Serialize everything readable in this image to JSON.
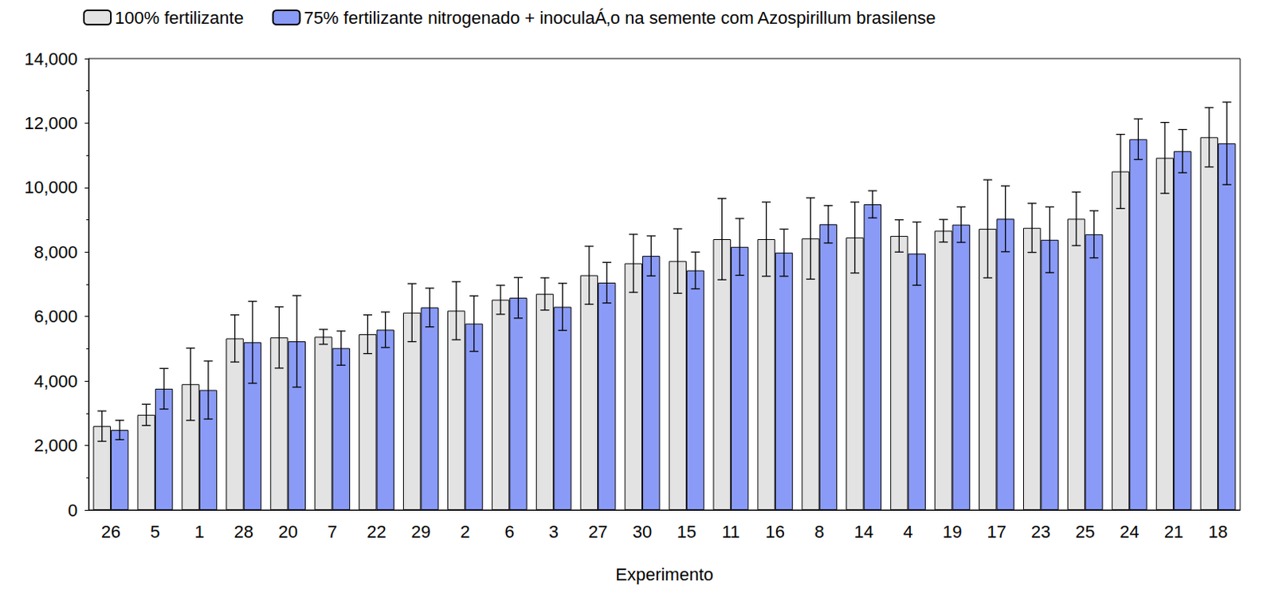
{
  "chart_data": {
    "type": "bar",
    "x_label": "Experimento",
    "categories": [
      "26",
      "5",
      "1",
      "28",
      "20",
      "7",
      "22",
      "29",
      "2",
      "6",
      "3",
      "27",
      "30",
      "15",
      "11",
      "16",
      "8",
      "14",
      "4",
      "19",
      "17",
      "23",
      "25",
      "24",
      "21",
      "18"
    ],
    "series": [
      {
        "name": "100% fertilizante",
        "color": "#e3e3e3",
        "values": [
          2600,
          2950,
          3900,
          5320,
          5350,
          5370,
          5450,
          6120,
          6180,
          6520,
          6700,
          7280,
          7650,
          7720,
          8400,
          8400,
          8420,
          8450,
          8500,
          8660,
          8720,
          8750,
          9030,
          10500,
          10920,
          11560
        ],
        "errors": [
          470,
          330,
          1120,
          730,
          950,
          230,
          600,
          900,
          900,
          450,
          500,
          900,
          900,
          1000,
          1260,
          1150,
          1260,
          1100,
          500,
          350,
          1520,
          760,
          830,
          1150,
          1100,
          920
        ]
      },
      {
        "name": "75% fertilizante nitrogenado + inoculaÁ‚o na semente com Azospirillum brasilense",
        "color": "#8a9bf7",
        "values": [
          2480,
          3760,
          3720,
          5200,
          5230,
          5020,
          5590,
          6280,
          5780,
          6580,
          6300,
          7050,
          7880,
          7430,
          8160,
          7980,
          8860,
          9480,
          7950,
          8850,
          9030,
          8380,
          8550,
          11500,
          11130,
          11370
        ],
        "errors": [
          300,
          630,
          900,
          1270,
          1420,
          530,
          550,
          600,
          860,
          630,
          730,
          630,
          620,
          570,
          880,
          730,
          580,
          420,
          980,
          550,
          1020,
          1020,
          730,
          630,
          670,
          1280
        ]
      }
    ],
    "ylim": [
      0,
      14000
    ],
    "yticks": [
      0,
      2000,
      4000,
      6000,
      8000,
      10000,
      12000,
      14000
    ],
    "grid": false,
    "legend": "top"
  }
}
